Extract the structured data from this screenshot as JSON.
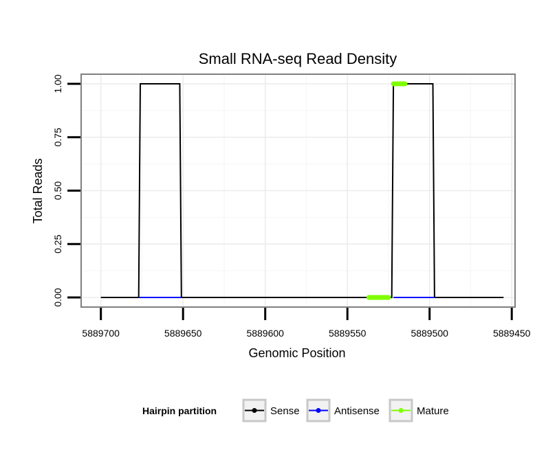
{
  "chart_data": {
    "type": "line",
    "title": "Small RNA-seq Read Density",
    "xlabel": "Genomic Position",
    "ylabel": "Total Reads",
    "x_reversed": true,
    "xlim": [
      5889712,
      5889448
    ],
    "ylim": [
      -0.045,
      1.045
    ],
    "x_ticks": [
      5889700,
      5889650,
      5889600,
      5889550,
      5889500,
      5889450
    ],
    "x_tick_labels": [
      "5889700",
      "5889650",
      "5889600",
      "5889550",
      "5889500",
      "5889450"
    ],
    "y_ticks": [
      0,
      0.25,
      0.5,
      0.75,
      1
    ],
    "y_tick_labels": [
      "0.00",
      "0.25",
      "0.50",
      "0.75",
      "1.00"
    ],
    "grid": true,
    "legend": {
      "title": "Hairpin partition",
      "position": "bottom",
      "entries": [
        "Sense",
        "Antisense",
        "Mature"
      ]
    },
    "series": [
      {
        "name": "Sense",
        "color": "#000000",
        "x": [
          5889700,
          5889677,
          5889676,
          5889652,
          5889651,
          5889523,
          5889522,
          5889498,
          5889497,
          5889455
        ],
        "y": [
          0,
          0,
          1,
          1,
          0,
          0,
          1,
          1,
          0,
          0
        ]
      },
      {
        "name": "Antisense",
        "segments": [
          {
            "x": [
              5889677,
              5889651
            ],
            "y": [
              0,
              0
            ]
          },
          {
            "x": [
              5889522,
              5889497
            ],
            "y": [
              0,
              0
            ]
          }
        ],
        "color": "#0000ff"
      },
      {
        "name": "Mature",
        "segments": [
          {
            "x": [
              5889537,
              5889525
            ],
            "y": [
              0,
              0
            ]
          },
          {
            "x": [
              5889522,
              5889515
            ],
            "y": [
              1,
              1
            ]
          }
        ],
        "color": "#7fff00"
      }
    ]
  }
}
